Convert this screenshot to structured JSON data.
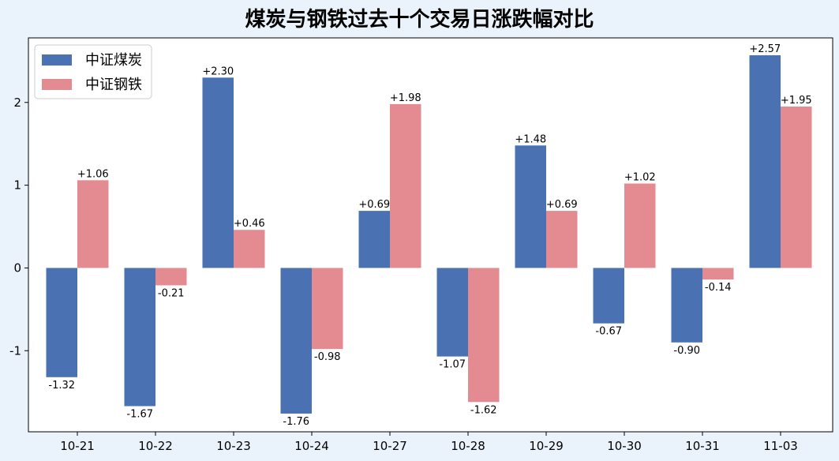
{
  "chart_data": {
    "type": "bar",
    "title": "煤炭与钢铁过去十个交易日涨跌幅对比",
    "xlabel": "",
    "ylabel": "",
    "categories": [
      "10-21",
      "10-22",
      "10-23",
      "10-24",
      "10-27",
      "10-28",
      "10-29",
      "10-30",
      "10-31",
      "11-03"
    ],
    "series": [
      {
        "name": "中证煤炭",
        "color": "#4a72b2",
        "values": [
          -1.32,
          -1.67,
          2.3,
          -1.76,
          0.69,
          -1.07,
          1.48,
          -0.67,
          -0.9,
          2.57
        ],
        "labels": [
          "-1.32",
          "-1.67",
          "+2.30",
          "-1.76",
          "+0.69",
          "-1.07",
          "+1.48",
          "-0.67",
          "-0.90",
          "+2.57"
        ]
      },
      {
        "name": "中证钢铁",
        "color": "#e48b91",
        "values": [
          1.06,
          -0.21,
          0.46,
          -0.98,
          1.98,
          -1.62,
          0.69,
          1.02,
          -0.14,
          1.95
        ],
        "labels": [
          "+1.06",
          "-0.21",
          "+0.46",
          "-0.98",
          "+1.98",
          "-1.62",
          "+0.69",
          "+1.02",
          "-0.14",
          "+1.95"
        ]
      }
    ],
    "ylim": [
      -1.98,
      2.78
    ],
    "yticks": [
      -1,
      0,
      1,
      2
    ],
    "ytick_labels": [
      "-1",
      "0",
      "1",
      "2"
    ],
    "grid": false,
    "legend_position": "top-left"
  }
}
